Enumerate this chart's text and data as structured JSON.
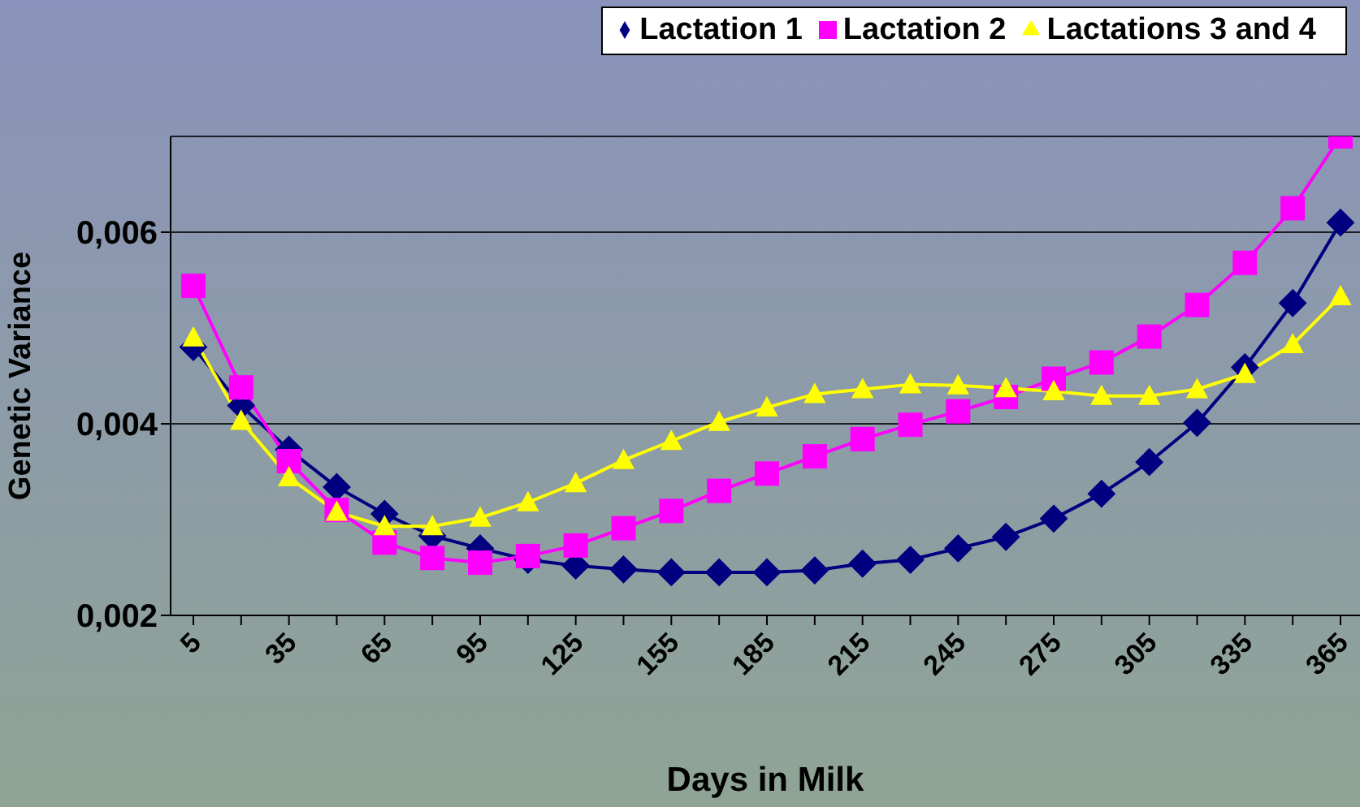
{
  "chart_data": {
    "type": "line",
    "xlabel": "Days in Milk",
    "ylabel": "Genetic Variance",
    "categories": [
      "5",
      null,
      "35",
      null,
      "65",
      null,
      "95",
      null,
      "125",
      null,
      "155",
      null,
      "185",
      null,
      "215",
      null,
      "245",
      null,
      "275",
      null,
      "305",
      null,
      "335",
      null,
      "365"
    ],
    "series": [
      {
        "name": "Lactation 1",
        "color": "#000080",
        "marker": "diamond",
        "values": [
          0.0048,
          0.00419,
          0.00373,
          0.00334,
          0.00306,
          0.00283,
          0.0027,
          0.00258,
          0.00252,
          0.00248,
          0.00245,
          0.00245,
          0.00245,
          0.00247,
          0.00254,
          0.00258,
          0.0027,
          0.00282,
          0.00301,
          0.00327,
          0.0036,
          0.00401,
          0.00459,
          0.00526,
          0.0061
        ]
      },
      {
        "name": "Lactation 2",
        "color": "#ff00ff",
        "marker": "square",
        "values": [
          0.00544,
          0.00438,
          0.00361,
          0.0031,
          0.00276,
          0.0026,
          0.00255,
          0.00262,
          0.00273,
          0.00291,
          0.00309,
          0.0033,
          0.00348,
          0.00366,
          0.00384,
          0.00399,
          0.00413,
          0.00428,
          0.00447,
          0.00464,
          0.00491,
          0.00524,
          0.00568,
          0.00625,
          0.007
        ]
      },
      {
        "name": "Lactations 3 and 4",
        "color": "#ffff00",
        "marker": "triangle",
        "values": [
          0.0049,
          0.00403,
          0.00344,
          0.00308,
          0.00293,
          0.00293,
          0.00302,
          0.00318,
          0.00338,
          0.00362,
          0.00382,
          0.00402,
          0.00417,
          0.00431,
          0.00436,
          0.00441,
          0.0044,
          0.00437,
          0.00434,
          0.00429,
          0.00429,
          0.00436,
          0.00452,
          0.00483,
          0.00533
        ]
      }
    ],
    "ylim": [
      0.002,
      0.007
    ],
    "yticks": [
      {
        "value": 0.002,
        "label": "0,002"
      },
      {
        "value": 0.004,
        "label": "0,004"
      },
      {
        "value": 0.006,
        "label": "0,006"
      }
    ],
    "grid": "y",
    "legend": "top right",
    "line_style": "solid"
  }
}
